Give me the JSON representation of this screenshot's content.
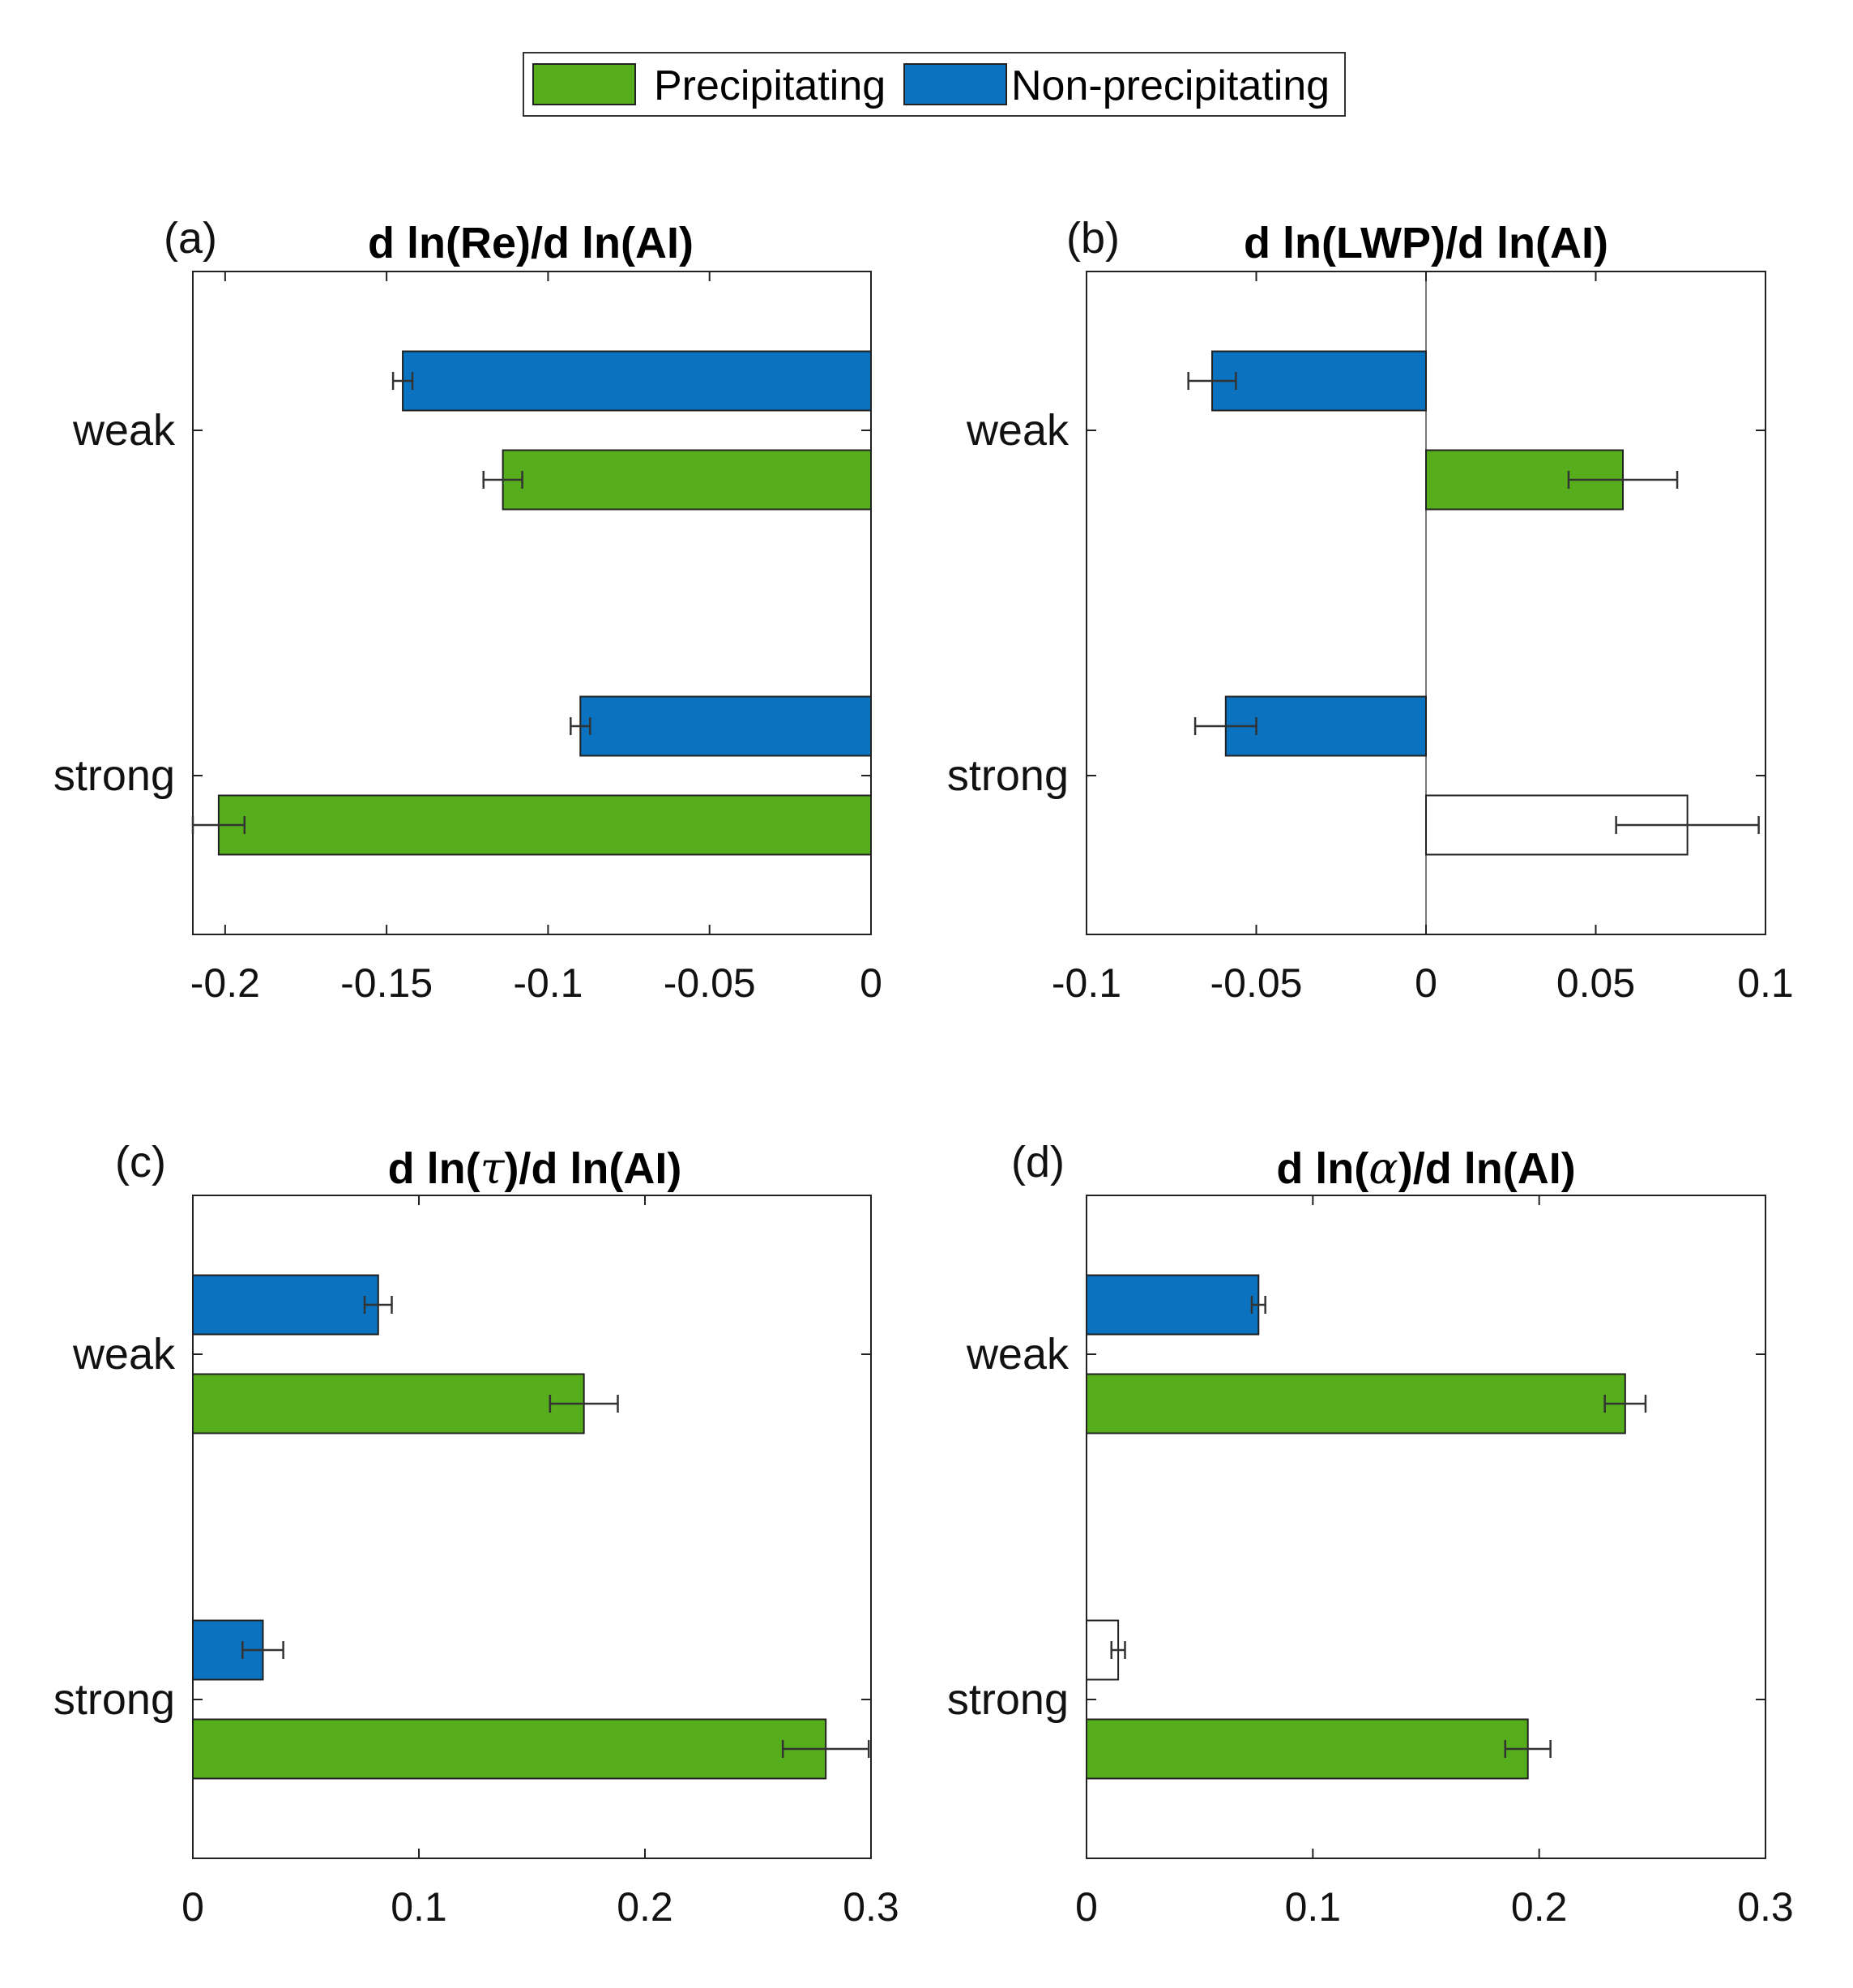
{
  "legend": {
    "items": [
      {
        "label": "Precipitating",
        "color": "#56ae1c"
      },
      {
        "label": "Non-precipitating",
        "color": "#0a72be"
      }
    ]
  },
  "chart_data": [
    {
      "type": "bar",
      "orientation": "horizontal",
      "panel": "(a)",
      "title": "d ln(Re)/d ln(AI)",
      "categories": [
        "weak",
        "strong"
      ],
      "xlim": [
        -0.21,
        0
      ],
      "xticks": [
        -0.2,
        -0.15,
        -0.1,
        -0.05,
        0
      ],
      "xtick_labels": [
        "-0.2",
        "-0.15",
        "-0.1",
        "-0.05",
        "0"
      ],
      "series": [
        {
          "name": "Non-precipitating",
          "values": [
            -0.145,
            -0.09
          ],
          "errors": [
            0.003,
            0.003
          ],
          "significant": [
            true,
            true
          ]
        },
        {
          "name": "Precipitating",
          "values": [
            -0.114,
            -0.202
          ],
          "errors": [
            0.006,
            0.008
          ],
          "significant": [
            true,
            true
          ]
        }
      ]
    },
    {
      "type": "bar",
      "orientation": "horizontal",
      "panel": "(b)",
      "title": "d ln(LWP)/d ln(AI)",
      "categories": [
        "weak",
        "strong"
      ],
      "xlim": [
        -0.1,
        0.1
      ],
      "xticks": [
        -0.1,
        -0.05,
        0,
        0.05,
        0.1
      ],
      "xtick_labels": [
        "-0.1",
        "-0.05",
        "0",
        "0.05",
        "0.1"
      ],
      "series": [
        {
          "name": "Non-precipitating",
          "values": [
            -0.063,
            -0.059
          ],
          "errors": [
            0.007,
            0.009
          ],
          "significant": [
            true,
            true
          ]
        },
        {
          "name": "Precipitating",
          "values": [
            0.058,
            0.077
          ],
          "errors": [
            0.016,
            0.021
          ],
          "significant": [
            true,
            false
          ]
        }
      ]
    },
    {
      "type": "bar",
      "orientation": "horizontal",
      "panel": "(c)",
      "title_prefix": "d ln(",
      "title_symbol": "τ",
      "title_suffix": ")/d ln(AI)",
      "categories": [
        "weak",
        "strong"
      ],
      "xlim": [
        0,
        0.3
      ],
      "xticks": [
        0,
        0.1,
        0.2,
        0.3
      ],
      "xtick_labels": [
        "0",
        "0.1",
        "0.2",
        "0.3"
      ],
      "series": [
        {
          "name": "Non-precipitating",
          "values": [
            0.082,
            0.031
          ],
          "errors": [
            0.006,
            0.009
          ],
          "significant": [
            true,
            true
          ]
        },
        {
          "name": "Precipitating",
          "values": [
            0.173,
            0.28
          ],
          "errors": [
            0.015,
            0.019
          ],
          "significant": [
            true,
            true
          ]
        }
      ]
    },
    {
      "type": "bar",
      "orientation": "horizontal",
      "panel": "(d)",
      "title_prefix": "d ln(",
      "title_symbol": "α",
      "title_suffix": ")/d ln(AI)",
      "categories": [
        "weak",
        "strong"
      ],
      "xlim": [
        0,
        0.3
      ],
      "xticks": [
        0,
        0.1,
        0.2,
        0.3
      ],
      "xtick_labels": [
        "0",
        "0.1",
        "0.2",
        "0.3"
      ],
      "series": [
        {
          "name": "Non-precipitating",
          "values": [
            0.076,
            0.014
          ],
          "errors": [
            0.003,
            0.003
          ],
          "significant": [
            true,
            false
          ]
        },
        {
          "name": "Precipitating",
          "values": [
            0.238,
            0.195
          ],
          "errors": [
            0.009,
            0.01
          ],
          "significant": [
            true,
            true
          ]
        }
      ]
    }
  ]
}
